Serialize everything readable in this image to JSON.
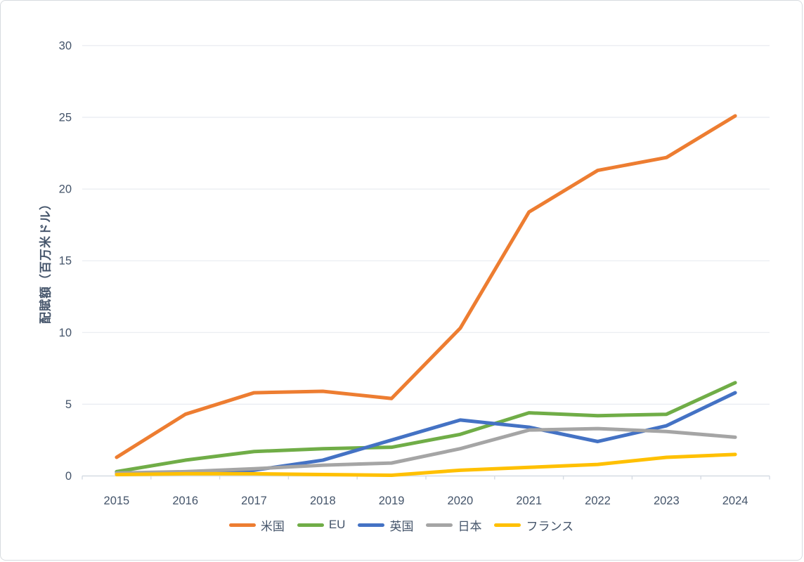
{
  "chart_data": {
    "type": "line",
    "x": [
      2015,
      2016,
      2017,
      2018,
      2019,
      2020,
      2021,
      2022,
      2023,
      2024
    ],
    "series": [
      {
        "name": "米国",
        "color": "#ED7D31",
        "values": [
          1.3,
          4.3,
          5.8,
          5.9,
          5.4,
          10.3,
          18.4,
          21.3,
          22.2,
          25.1
        ]
      },
      {
        "name": "EU",
        "color": "#70AD47",
        "values": [
          0.3,
          1.1,
          1.7,
          1.9,
          2.0,
          2.9,
          4.4,
          4.2,
          4.3,
          6.5
        ]
      },
      {
        "name": "英国",
        "color": "#4472C4",
        "values": [
          0.2,
          0.2,
          0.4,
          1.1,
          2.5,
          3.9,
          3.4,
          2.4,
          3.5,
          5.8
        ]
      },
      {
        "name": "日本",
        "color": "#A5A5A5",
        "values": [
          0.2,
          0.3,
          0.5,
          0.75,
          0.9,
          1.9,
          3.2,
          3.3,
          3.1,
          2.7
        ]
      },
      {
        "name": "フランス",
        "color": "#FFC000",
        "values": [
          0.1,
          0.15,
          0.15,
          0.1,
          0.05,
          0.4,
          0.6,
          0.8,
          1.3,
          1.5
        ]
      }
    ],
    "title": "",
    "xlabel": "",
    "ylabel": "配賦額（百万米ドル）",
    "ylim": [
      0,
      30
    ],
    "ytick_step": 5,
    "yticks": [
      "0",
      "5",
      "10",
      "15",
      "20",
      "25",
      "30"
    ],
    "grid": true,
    "legend_position": "bottom",
    "axis_text_color": "#44546A",
    "gridline_color": "#E8EBF1",
    "axis_line_color": "#D5DBE3"
  }
}
